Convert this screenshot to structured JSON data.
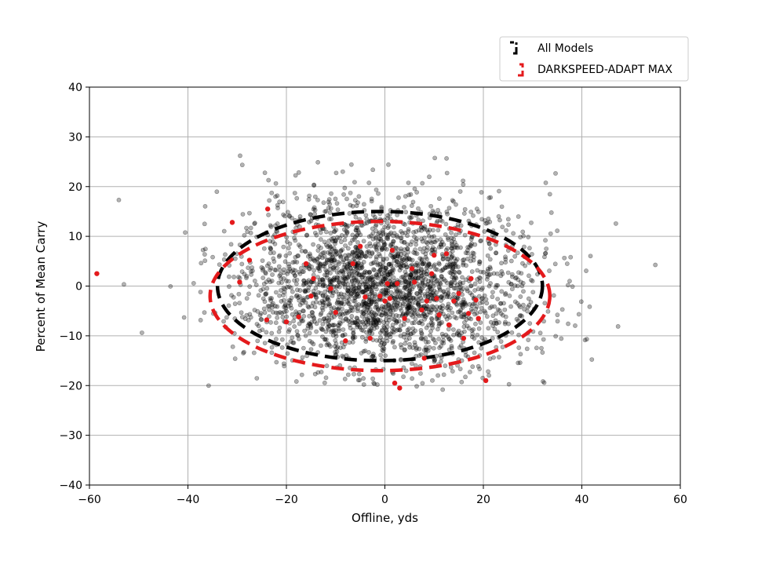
{
  "chart_data": {
    "type": "scatter",
    "xlabel": "Offline, yds",
    "ylabel": "Percent of Mean Carry",
    "xlim": [
      -60,
      60
    ],
    "ylim": [
      -40,
      40
    ],
    "xticks": [
      "−60",
      "−40",
      "−20",
      "0",
      "20",
      "40",
      "60"
    ],
    "yticks": [
      "−40",
      "−30",
      "−20",
      "−10",
      "0",
      "10",
      "20",
      "30",
      "40"
    ],
    "grid": true,
    "legend_position": "top-right",
    "series": [
      {
        "name": "All Models",
        "color": "#000000",
        "marker_alpha": 0.3,
        "point_count": 2600,
        "spread": {
          "x_center": 0,
          "y_center": 0,
          "x_sd": 15,
          "y_sd": 8.5
        },
        "ellipse": {
          "cx": -1,
          "cy": 0,
          "rx": 33,
          "ry": 15
        }
      },
      {
        "name": "DARKSPEED-ADAPT MAX",
        "color": "#e41a1c",
        "points": [
          [
            -58.5,
            2.5
          ],
          [
            -31,
            12.8
          ],
          [
            -23.8,
            15.5
          ],
          [
            -27.5,
            5.2
          ],
          [
            -29.5,
            0.8
          ],
          [
            -24,
            -6.8
          ],
          [
            -20,
            -7.2
          ],
          [
            -16,
            4.5
          ],
          [
            -14.5,
            1.5
          ],
          [
            -15,
            -2
          ],
          [
            -17.5,
            -6.2
          ],
          [
            -11,
            -0.5
          ],
          [
            -10,
            -5.3
          ],
          [
            -8,
            -11
          ],
          [
            -6.5,
            4.5
          ],
          [
            -5,
            8
          ],
          [
            -4,
            -2.2
          ],
          [
            -3,
            -10.5
          ],
          [
            -1,
            -2
          ],
          [
            0,
            -3
          ],
          [
            0.5,
            0.5
          ],
          [
            1,
            -2.5
          ],
          [
            1.5,
            7.2
          ],
          [
            2.5,
            0.5
          ],
          [
            3,
            -20.5
          ],
          [
            2,
            -19.5
          ],
          [
            4,
            -6.5
          ],
          [
            5.5,
            3.5
          ],
          [
            6,
            0.8
          ],
          [
            7.5,
            -4.8
          ],
          [
            8,
            -14.5
          ],
          [
            8.5,
            -3
          ],
          [
            9.5,
            2.5
          ],
          [
            10.5,
            -2.5
          ],
          [
            11,
            -5.8
          ],
          [
            12.5,
            6.5
          ],
          [
            13,
            -7.8
          ],
          [
            14,
            -3
          ],
          [
            15,
            -1.5
          ],
          [
            16,
            -10.5
          ],
          [
            17,
            -5.5
          ],
          [
            17.5,
            1.5
          ],
          [
            19,
            -6.5
          ],
          [
            20.5,
            -19
          ],
          [
            18.5,
            -2.8
          ],
          [
            10,
            6.2
          ]
        ],
        "ellipse": {
          "cx": -1,
          "cy": -2,
          "rx": 34.5,
          "ry": 15
        }
      }
    ]
  }
}
